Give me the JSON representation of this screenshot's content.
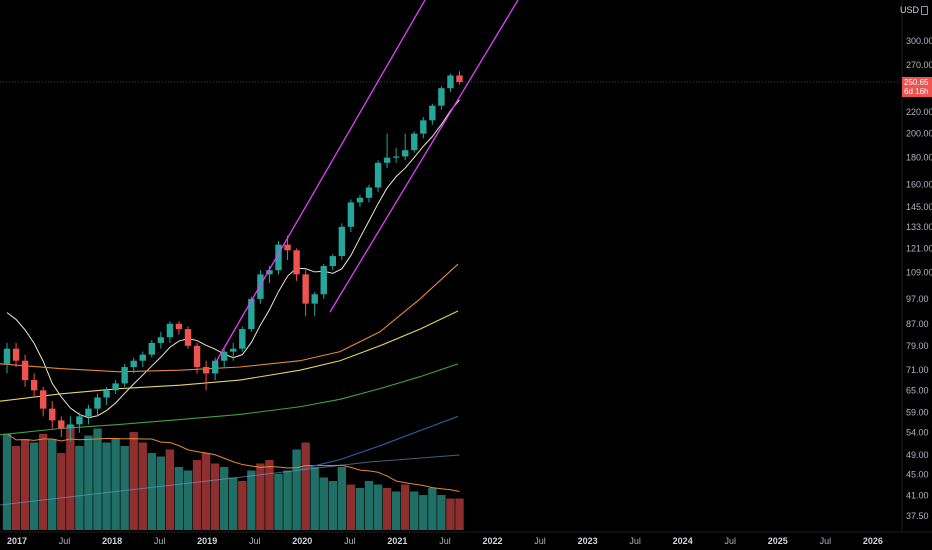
{
  "currency": {
    "label": "USD",
    "lock_icon": "lock-icon"
  },
  "price_tag": {
    "price": "250.65",
    "countdown": "6d 16h",
    "color": "#ef5350"
  },
  "colors": {
    "bg": "#000000",
    "up": "#26a69a",
    "down": "#ef5350",
    "vol_up": "#1f6f66",
    "vol_down": "#8e2f2f",
    "channel": "#e040fb",
    "ma1": "#e8e8d0",
    "ma2": "#e38a35",
    "ma3": "#e6d26b",
    "ma4": "#43a047",
    "ma5": "#2f5fb0",
    "vol_ma": "#e38a35",
    "vol_ma2": "#6ea4c8"
  },
  "chart_data": {
    "type": "candlestick",
    "interval": "weekly",
    "currency": "USD",
    "scale": "log",
    "y_ticks": [
      300.0,
      270.0,
      250.0,
      220.0,
      200.0,
      180.0,
      160.0,
      145.0,
      133.0,
      121.0,
      109.0,
      97.0,
      87.0,
      79.0,
      71.0,
      65.0,
      59.0,
      54.0,
      49.0,
      45.0,
      41.0,
      37.5
    ],
    "y_tick_labels": [
      "300.00",
      "270.00",
      "",
      "220.00",
      "200.00",
      "180.00",
      "160.00",
      "145.00",
      "133.00",
      "121.00",
      "109.00",
      "97.00",
      "87.00",
      "79.00",
      "71.00",
      "65.00",
      "59.00",
      "54.00",
      "49.00",
      "45.00",
      "41.00",
      "37.50"
    ],
    "x_ticks": [
      {
        "label": "2017",
        "year": true
      },
      {
        "label": "Jul",
        "year": false
      },
      {
        "label": "2018",
        "year": true
      },
      {
        "label": "Jul",
        "year": false
      },
      {
        "label": "2019",
        "year": true
      },
      {
        "label": "Jul",
        "year": false
      },
      {
        "label": "2020",
        "year": true
      },
      {
        "label": "Jul",
        "year": false
      },
      {
        "label": "2021",
        "year": true
      },
      {
        "label": "Jul",
        "year": false
      },
      {
        "label": "2022",
        "year": true
      },
      {
        "label": "Jul",
        "year": false
      },
      {
        "label": "2023",
        "year": true
      },
      {
        "label": "Jul",
        "year": false
      },
      {
        "label": "2024",
        "year": true
      },
      {
        "label": "Jul",
        "year": false
      },
      {
        "label": "2025",
        "year": true
      },
      {
        "label": "Jul",
        "year": false
      },
      {
        "label": "2026",
        "year": true
      }
    ],
    "last_price": 250.65,
    "candles": [
      [
        73,
        80,
        70,
        78
      ],
      [
        78,
        80,
        72,
        74
      ],
      [
        74,
        76,
        66,
        68
      ],
      [
        68,
        70,
        63,
        65
      ],
      [
        65,
        66,
        58,
        60
      ],
      [
        60,
        62,
        55,
        57
      ],
      [
        57,
        58,
        53,
        55
      ],
      [
        55,
        58,
        52,
        56
      ],
      [
        56,
        59,
        54,
        58
      ],
      [
        58,
        61,
        56,
        60
      ],
      [
        60,
        64,
        58,
        63
      ],
      [
        63,
        66,
        61,
        65
      ],
      [
        65,
        68,
        64,
        67
      ],
      [
        67,
        73,
        66,
        72
      ],
      [
        72,
        75,
        70,
        74
      ],
      [
        74,
        77,
        72,
        76
      ],
      [
        76,
        81,
        75,
        80
      ],
      [
        80,
        84,
        78,
        82
      ],
      [
        82,
        88,
        80,
        87
      ],
      [
        87,
        88,
        83,
        85
      ],
      [
        85,
        86,
        78,
        79
      ],
      [
        79,
        80,
        70,
        72
      ],
      [
        72,
        74,
        65,
        70
      ],
      [
        70,
        75,
        68,
        74
      ],
      [
        74,
        78,
        72,
        77
      ],
      [
        77,
        80,
        74,
        78
      ],
      [
        78,
        86,
        77,
        85
      ],
      [
        85,
        98,
        84,
        97
      ],
      [
        97,
        110,
        95,
        108
      ],
      [
        108,
        112,
        104,
        110
      ],
      [
        110,
        125,
        108,
        123
      ],
      [
        123,
        128,
        115,
        120
      ],
      [
        120,
        121,
        105,
        108
      ],
      [
        108,
        110,
        90,
        95
      ],
      [
        95,
        100,
        90,
        99
      ],
      [
        99,
        113,
        97,
        112
      ],
      [
        112,
        118,
        110,
        117
      ],
      [
        117,
        135,
        115,
        133
      ],
      [
        133,
        150,
        130,
        148
      ],
      [
        148,
        153,
        145,
        151
      ],
      [
        151,
        160,
        148,
        158
      ],
      [
        158,
        178,
        155,
        176
      ],
      [
        176,
        200,
        172,
        180
      ],
      [
        180,
        188,
        176,
        181
      ],
      [
        181,
        200,
        178,
        186
      ],
      [
        186,
        202,
        184,
        200
      ],
      [
        200,
        215,
        196,
        212
      ],
      [
        212,
        228,
        208,
        226
      ],
      [
        226,
        246,
        222,
        244
      ],
      [
        244,
        260,
        240,
        258
      ],
      [
        258,
        263,
        248,
        250.65
      ]
    ],
    "volumes": [
      [
        55,
        "up"
      ],
      [
        48,
        "down"
      ],
      [
        52,
        "down"
      ],
      [
        50,
        "up"
      ],
      [
        55,
        "down"
      ],
      [
        52,
        "up"
      ],
      [
        44,
        "down"
      ],
      [
        60,
        "down"
      ],
      [
        48,
        "up"
      ],
      [
        54,
        "up"
      ],
      [
        58,
        "up"
      ],
      [
        50,
        "up"
      ],
      [
        52,
        "up"
      ],
      [
        48,
        "up"
      ],
      [
        56,
        "down"
      ],
      [
        50,
        "down"
      ],
      [
        44,
        "up"
      ],
      [
        42,
        "up"
      ],
      [
        46,
        "down"
      ],
      [
        36,
        "up"
      ],
      [
        34,
        "up"
      ],
      [
        40,
        "down"
      ],
      [
        44,
        "down"
      ],
      [
        38,
        "down"
      ],
      [
        36,
        "up"
      ],
      [
        30,
        "up"
      ],
      [
        28,
        "down"
      ],
      [
        34,
        "up"
      ],
      [
        38,
        "down"
      ],
      [
        40,
        "down"
      ],
      [
        32,
        "up"
      ],
      [
        34,
        "up"
      ],
      [
        46,
        "up"
      ],
      [
        50,
        "down"
      ],
      [
        36,
        "up"
      ],
      [
        30,
        "up"
      ],
      [
        28,
        "up"
      ],
      [
        36,
        "up"
      ],
      [
        26,
        "down"
      ],
      [
        24,
        "up"
      ],
      [
        28,
        "up"
      ],
      [
        26,
        "up"
      ],
      [
        24,
        "down"
      ],
      [
        22,
        "up"
      ],
      [
        26,
        "down"
      ],
      [
        22,
        "up"
      ],
      [
        20,
        "up"
      ],
      [
        24,
        "up"
      ],
      [
        20,
        "up"
      ],
      [
        18,
        "down"
      ],
      [
        18,
        "down"
      ]
    ]
  }
}
